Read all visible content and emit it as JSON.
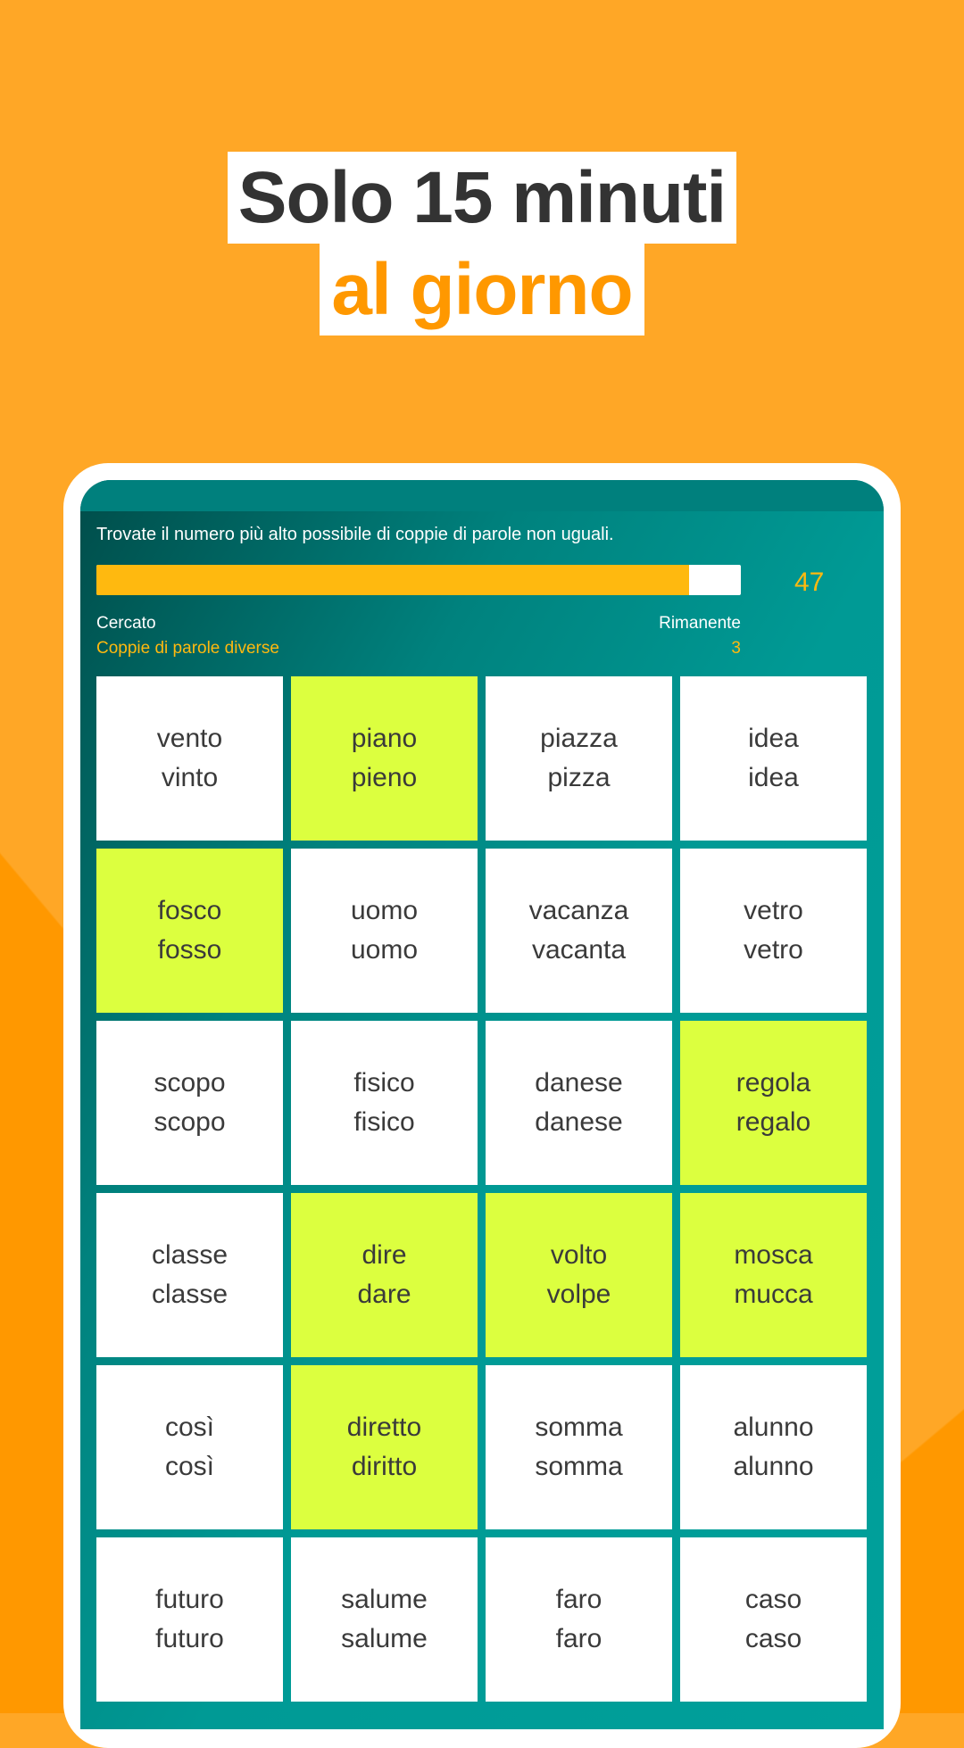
{
  "headline": {
    "line1": "Solo 15 minuti",
    "line2": "al giorno"
  },
  "colors": {
    "accent": "#FF9800",
    "teal": "#009a95",
    "selected": "#DCFF3F",
    "progress": "#FFB90F"
  },
  "game": {
    "instruction": "Trovate il numero più alto possibile di coppie di parole non uguali.",
    "progress_percent": 92,
    "score": "47",
    "searched_label": "Cercato",
    "searched_value": "Coppie di parole diverse",
    "remaining_label": "Rimanente",
    "remaining_value": "3",
    "cells": [
      {
        "a": "vento",
        "b": "vinto",
        "selected": false
      },
      {
        "a": "piano",
        "b": "pieno",
        "selected": true
      },
      {
        "a": "piazza",
        "b": "pizza",
        "selected": false
      },
      {
        "a": "idea",
        "b": "idea",
        "selected": false
      },
      {
        "a": "fosco",
        "b": "fosso",
        "selected": true
      },
      {
        "a": "uomo",
        "b": "uomo",
        "selected": false
      },
      {
        "a": "vacanza",
        "b": "vacanta",
        "selected": false
      },
      {
        "a": "vetro",
        "b": "vetro",
        "selected": false
      },
      {
        "a": "scopo",
        "b": "scopo",
        "selected": false
      },
      {
        "a": "fisico",
        "b": "fisico",
        "selected": false
      },
      {
        "a": "danese",
        "b": "danese",
        "selected": false
      },
      {
        "a": "regola",
        "b": "regalo",
        "selected": true
      },
      {
        "a": "classe",
        "b": "classe",
        "selected": false
      },
      {
        "a": "dire",
        "b": "dare",
        "selected": true
      },
      {
        "a": "volto",
        "b": "volpe",
        "selected": true
      },
      {
        "a": "mosca",
        "b": "mucca",
        "selected": true
      },
      {
        "a": "così",
        "b": "così",
        "selected": false
      },
      {
        "a": "diretto",
        "b": "diritto",
        "selected": true
      },
      {
        "a": "somma",
        "b": "somma",
        "selected": false
      },
      {
        "a": "alunno",
        "b": "alunno",
        "selected": false
      },
      {
        "a": "futuro",
        "b": "futuro",
        "selected": false
      },
      {
        "a": "salume",
        "b": "salume",
        "selected": false
      },
      {
        "a": "faro",
        "b": "faro",
        "selected": false
      },
      {
        "a": "caso",
        "b": "caso",
        "selected": false
      }
    ]
  }
}
